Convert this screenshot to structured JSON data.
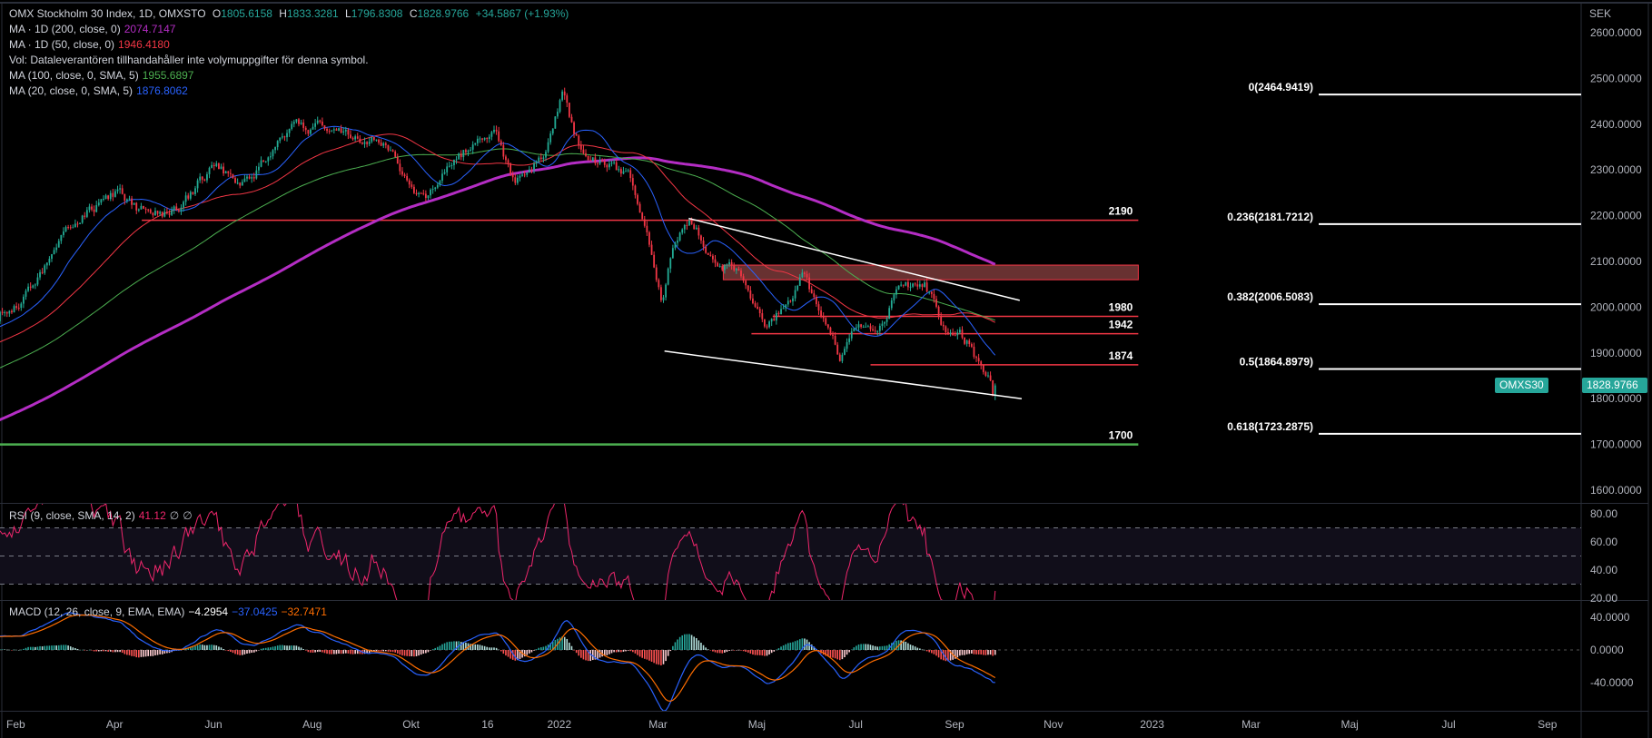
{
  "legend": {
    "symbol": "OMX Stockholm 30 Index, 1D, OMXSTO",
    "o_label": "O",
    "o": "1805.6158",
    "h_label": "H",
    "h": "1833.3281",
    "l_label": "L",
    "l": "1796.8308",
    "c_label": "C",
    "c": "1828.9766",
    "change": "+34.5867 (+1.93%)",
    "ma200_label": "MA · 1D (200, close, 0)",
    "ma200": "2074.7147",
    "ma50_label": "MA · 1D (50, close, 0)",
    "ma50": "1946.4180",
    "vol_label": "Vol: Dataleverantören tillhandahåller inte volymuppgifter för denna symbol.",
    "ma100_label": "MA (100, close, 0, SMA, 5)",
    "ma100": "1955.6897",
    "ma20_label": "MA (20, close, 0, SMA, 5)",
    "ma20": "1876.8062",
    "rsi_label": "RSI (9, close, SMA, 14, 2)",
    "rsi": "41.12",
    "rsi_extra1": "∅",
    "rsi_extra2": "∅",
    "macd_label": "MACD (12, 26, close, 9, EMA, EMA)",
    "macd_hist": "−4.2954",
    "macd": "−37.0425",
    "macd_signal": "−32.7471"
  },
  "price_badge": {
    "symbol": "OMXS30",
    "value": "1828.9766"
  },
  "colors": {
    "up": "#22ab94",
    "down": "#f23645",
    "ma200": "#b42dc4",
    "ma50": "#f23645",
    "ma100": "#4caf50",
    "ma20": "#2962ff",
    "rsi": "#f0266c",
    "macd": "#2962ff",
    "signal": "#ff6d00",
    "accent": "#26a69a"
  },
  "chart_data": {
    "type": "candlestick",
    "title": "OMX Stockholm 30 Index, 1D, OMXSTO",
    "x_unit": "month index (1 = Feb 2021)",
    "price_axis": {
      "label": "SEK",
      "ticks": [
        "2600.0000",
        "2500.0000",
        "2400.0000",
        "2300.0000",
        "2200.0000",
        "2100.0000",
        "2000.0000",
        "1900.0000",
        "1800.0000",
        "1700.0000",
        "1600.0000"
      ],
      "ylim": [
        1580,
        2640
      ]
    },
    "time_axis": [
      {
        "m": 1,
        "label": "Feb"
      },
      {
        "m": 3,
        "label": "Apr"
      },
      {
        "m": 5,
        "label": "Jun"
      },
      {
        "m": 7,
        "label": "Aug"
      },
      {
        "m": 9,
        "label": "Okt"
      },
      {
        "m": 10.55,
        "label": "16"
      },
      {
        "m": 12,
        "label": "2022"
      },
      {
        "m": 14,
        "label": "Mar"
      },
      {
        "m": 16,
        "label": "Maj"
      },
      {
        "m": 18,
        "label": "Jul"
      },
      {
        "m": 20,
        "label": "Sep"
      },
      {
        "m": 22,
        "label": "Nov"
      },
      {
        "m": 24,
        "label": "2023"
      },
      {
        "m": 26,
        "label": "Mar"
      },
      {
        "m": 28,
        "label": "Maj"
      },
      {
        "m": 30,
        "label": "Jul"
      },
      {
        "m": 32,
        "label": "Sep"
      }
    ],
    "close_keypoints": [
      [
        0.68,
        1980
      ],
      [
        1.32,
        2049
      ],
      [
        2.38,
        2211
      ],
      [
        3.02,
        2245
      ],
      [
        3.45,
        2211
      ],
      [
        4.3,
        2199
      ],
      [
        4.94,
        2303
      ],
      [
        5.57,
        2280
      ],
      [
        6.64,
        2383
      ],
      [
        7.38,
        2395
      ],
      [
        7.91,
        2383
      ],
      [
        8.55,
        2349
      ],
      [
        9.19,
        2234
      ],
      [
        9.4,
        2245
      ],
      [
        9.83,
        2326
      ],
      [
        10.68,
        2383
      ],
      [
        11.11,
        2268
      ],
      [
        11.74,
        2326
      ],
      [
        12.06,
        2453
      ],
      [
        12.28,
        2383
      ],
      [
        12.6,
        2326
      ],
      [
        13.02,
        2314
      ],
      [
        13.45,
        2268
      ],
      [
        13.77,
        2141
      ],
      [
        14.09,
        2003
      ],
      [
        14.3,
        2130
      ],
      [
        14.62,
        2176
      ],
      [
        15.15,
        2118
      ],
      [
        15.57,
        2084
      ],
      [
        15.89,
        2003
      ],
      [
        16.21,
        1957
      ],
      [
        16.64,
        2015
      ],
      [
        16.96,
        2072
      ],
      [
        17.28,
        1980
      ],
      [
        17.7,
        1888
      ],
      [
        18.02,
        1957
      ],
      [
        18.34,
        1934
      ],
      [
        18.77,
        2026
      ],
      [
        19.4,
        2049
      ],
      [
        19.83,
        1957
      ],
      [
        20.26,
        1923
      ],
      [
        20.57,
        1853
      ],
      [
        20.85,
        1829
      ]
    ],
    "last_candle": {
      "open": 1805.6158,
      "high": 1833.3281,
      "low": 1796.8308,
      "close": 1828.9766
    },
    "horizontal_levels": [
      {
        "price": 2190,
        "label": "2190",
        "from_m": 3.55,
        "color": "#f23645"
      },
      {
        "price": 1980,
        "label": "1980",
        "from_m": 16.32,
        "color": "#f23645"
      },
      {
        "price": 1942,
        "label": "1942",
        "from_m": 15.89,
        "color": "#f23645"
      },
      {
        "price": 1874,
        "label": "1874",
        "from_m": 18.3,
        "color": "#f23645"
      },
      {
        "price": 1700,
        "label": "1700",
        "from_m": 0,
        "color": "#4caf50"
      }
    ],
    "level_end_m": 23.72,
    "zone": {
      "from_m": 15.32,
      "to_m": 23.72,
      "low": 2060,
      "high": 2092
    },
    "trendlines": [
      {
        "m1": 14.62,
        "p1": 2194,
        "m2": 21.32,
        "p2": 2015
      },
      {
        "m1": 14.13,
        "p1": 1904,
        "m2": 21.36,
        "p2": 1800
      }
    ],
    "fibonacci": [
      {
        "label": "0(2464.9419)",
        "price": 2464.9419
      },
      {
        "label": "0.236(2181.7212)",
        "price": 2181.7212
      },
      {
        "label": "0.382(2006.5083)",
        "price": 2006.5083
      },
      {
        "label": "0.5(1864.8979)",
        "price": 1864.8979
      },
      {
        "label": "0.618(1723.2875)",
        "price": 1723.2875
      }
    ],
    "rsi_axis": {
      "ticks": [
        "80.00",
        "60.00",
        "40.00",
        "20.00"
      ],
      "band": [
        30,
        70
      ],
      "mid": 50
    },
    "macd_axis": {
      "ticks": [
        "40.0000",
        "0.0000",
        "-40.0000"
      ]
    }
  }
}
